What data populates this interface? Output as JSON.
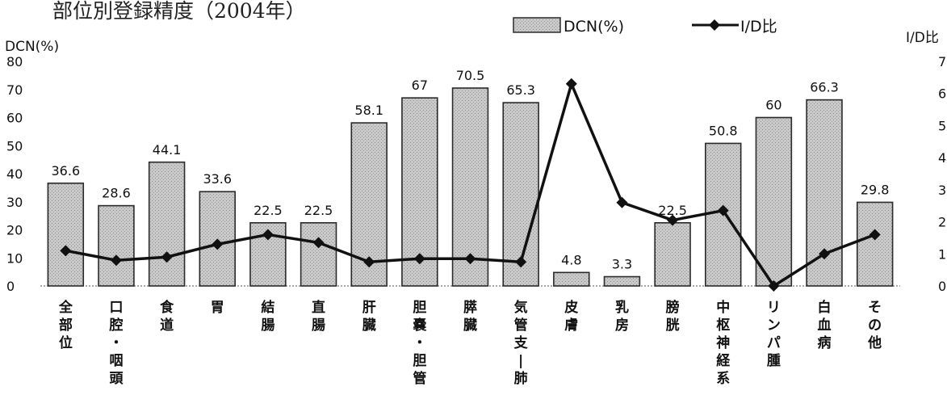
{
  "chart_data": {
    "type": "bar",
    "title": "部位別登録精度（2004年）",
    "categories": [
      "全部位",
      "口腔・咽頭",
      "食道",
      "胃",
      "結腸",
      "直腸",
      "肝臓",
      "胆嚢・胆管",
      "膵臓",
      "気管支ー肺",
      "皮膚",
      "乳房",
      "膀胱",
      "中枢神経系",
      "リンパ腫",
      "白血病",
      "その他"
    ],
    "category_lines": [
      [
        "全",
        "部",
        "位"
      ],
      [
        "口",
        "腔",
        "・",
        "咽",
        "頭"
      ],
      [
        "食",
        "道"
      ],
      [
        "胃"
      ],
      [
        "結",
        "腸"
      ],
      [
        "直",
        "腸"
      ],
      [
        "肝",
        "臓"
      ],
      [
        "胆",
        "嚢",
        "・",
        "胆",
        "管"
      ],
      [
        "膵",
        "臓"
      ],
      [
        "気",
        "管",
        "支",
        "|",
        "肺"
      ],
      [
        "皮",
        "膚"
      ],
      [
        "乳",
        "房"
      ],
      [
        "膀",
        "胱"
      ],
      [
        "中",
        "枢",
        "神",
        "経",
        "系"
      ],
      [
        "リ",
        "ン",
        "パ",
        "腫"
      ],
      [
        "白",
        "血",
        "病"
      ],
      [
        "そ",
        "の",
        "他"
      ]
    ],
    "series": [
      {
        "name": "DCN(%)",
        "kind": "bar",
        "axis": "left",
        "values": [
          36.6,
          28.6,
          44.1,
          33.6,
          22.5,
          22.5,
          58.1,
          67,
          70.5,
          65.3,
          4.8,
          3.3,
          22.5,
          50.8,
          60,
          66.3,
          29.8
        ],
        "labels": [
          "36.6",
          "28.6",
          "44.1",
          "33.6",
          "22.5",
          "22.5",
          "58.1",
          "67",
          "70.5",
          "65.3",
          "4.8",
          "3.3",
          "22.5",
          "50.8",
          "60",
          "66.3",
          "29.8"
        ]
      },
      {
        "name": "I/D比",
        "kind": "line",
        "axis": "right",
        "values": [
          1.1,
          0.8,
          0.9,
          1.3,
          1.6,
          1.35,
          0.75,
          0.85,
          0.85,
          0.75,
          6.3,
          2.6,
          2.05,
          2.35,
          0.0,
          1.0,
          1.6
        ]
      }
    ],
    "ylabel_left": "DCN(%)",
    "ylabel_right": "I/D比",
    "ylim_left": [
      0,
      80
    ],
    "ylim_right": [
      0,
      7
    ],
    "yticks_left": [
      "0",
      "10",
      "20",
      "30",
      "40",
      "50",
      "60",
      "70",
      "80"
    ],
    "yticks_right": [
      "0",
      "1",
      "2",
      "3",
      "4",
      "5",
      "6",
      "7"
    ],
    "legend_position": "top",
    "grid": false,
    "colors": {
      "bar_fill": "#c4c4c4",
      "bar_stroke": "#2a2a2a",
      "line": "#111111",
      "marker": "#111111"
    }
  }
}
